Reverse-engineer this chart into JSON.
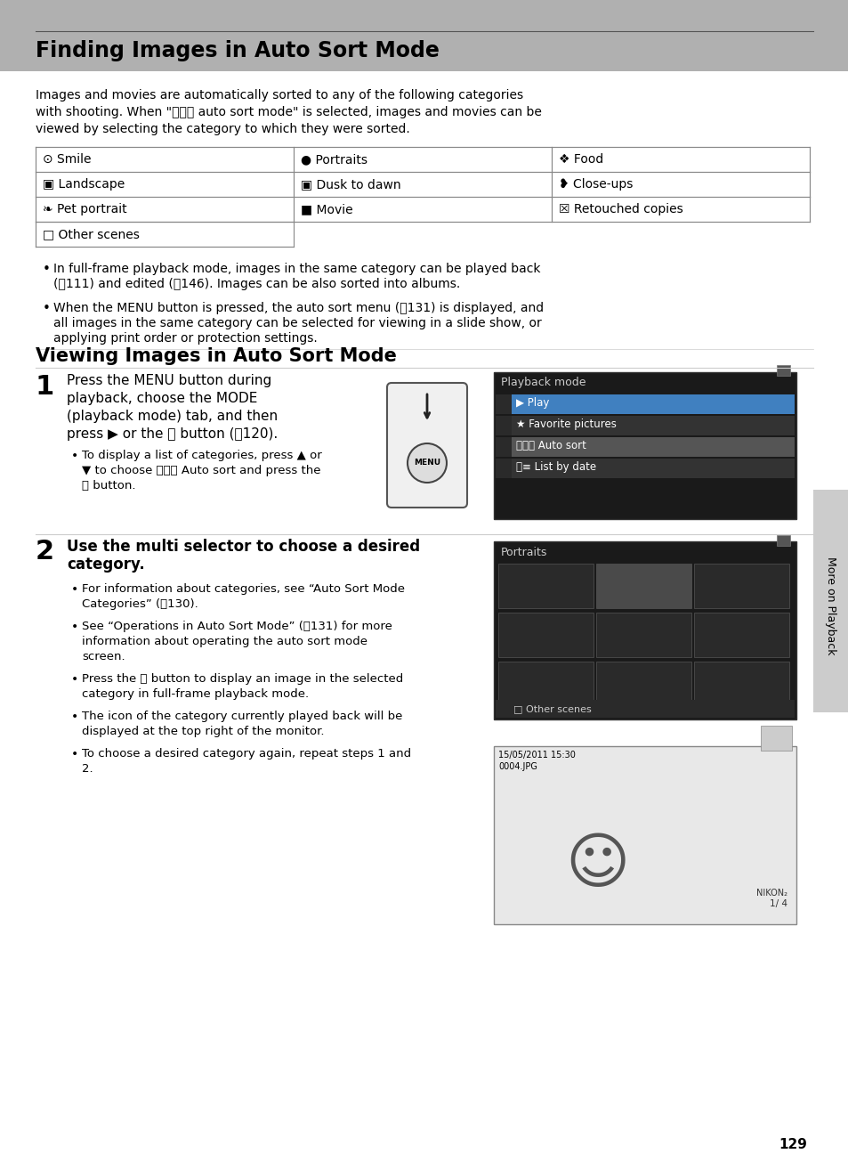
{
  "title": "Finding Images in Auto Sort Mode",
  "subtitle2": "Viewing Images in Auto Sort Mode",
  "bg_color": "#ffffff",
  "header_bg": "#aaaaaa",
  "header_text_color": "#ffffff",
  "body_text_color": "#000000",
  "page_number": "129",
  "sidebar_text": "More on Playback",
  "intro_text": "Images and movies are automatically sorted to any of the following categories\nwith shooting. When \"ⒶⓄ⒣ auto sort mode\" is selected, images and movies can be\nviewed by selecting the category to which they were sorted.",
  "table_rows": [
    [
      "⊙ Smile",
      "● Portraits",
      "❖ Food"
    ],
    [
      "▣ Landscape",
      "▣ Dusk to dawn",
      "❥ Close-ups"
    ],
    [
      "❧ Pet portrait",
      "■ Movie",
      "☒ Retouched copies"
    ],
    [
      "□ Other scenes",
      "",
      ""
    ]
  ],
  "bullets_section1": [
    "In full-frame playback mode, images in the same category can be played back\n(⧉111) and edited (⧉146). Images can be also sorted into albums.",
    "When the MENU button is pressed, the auto sort menu (⧉131) is displayed, and\nall images in the same category can be selected for viewing in a slide show, or\napplying print order or protection settings."
  ],
  "step1_title": "Press the MENU button during\nplayback, choose the MODE\n(playback mode) tab, and then\npress ▶ or the ⒪ button (⧉120).",
  "step1_sub": "To display a list of categories, press ▲ or\n▼ to choose ⒶⓄ⒣ Auto sort and press the\n⒪ button.",
  "step2_title": "Use the multi selector to choose a desired\ncategory.",
  "step2_bullets": [
    "For information about categories, see “Auto Sort Mode\nCategories” (⧉130).",
    "See “Operations in Auto Sort Mode” (⧉131) for more\ninformation about operating the auto sort mode\nscreen.",
    "Press the ⒪ button to display an image in the selected\ncategory in full-frame playback mode.",
    "The icon of the category currently played back will be\ndisplayed at the top right of the monitor.",
    "To choose a desired category again, repeat steps 1 and\n2."
  ]
}
